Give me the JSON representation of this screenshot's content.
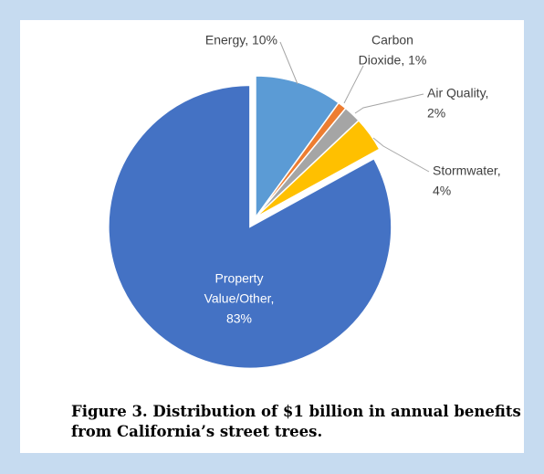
{
  "chart_data": {
    "type": "pie",
    "title": "Figure 3. Distribution of $1 billion in annual benefits from California’s street trees.",
    "values": [
      10,
      1,
      2,
      4,
      83
    ],
    "value_labels": [
      [
        "Energy, 10%"
      ],
      [
        "Carbon",
        "Dioxide, 1%"
      ],
      [
        "Air Quality,",
        "2%"
      ],
      [
        "Stormwater,",
        "4%"
      ],
      [
        "Property",
        "Value/Other,",
        "83%"
      ]
    ],
    "colors": [
      "#5b9bd5",
      "#ed7d31",
      "#a5a5a5",
      "#ffc000",
      "#4472c4"
    ]
  }
}
